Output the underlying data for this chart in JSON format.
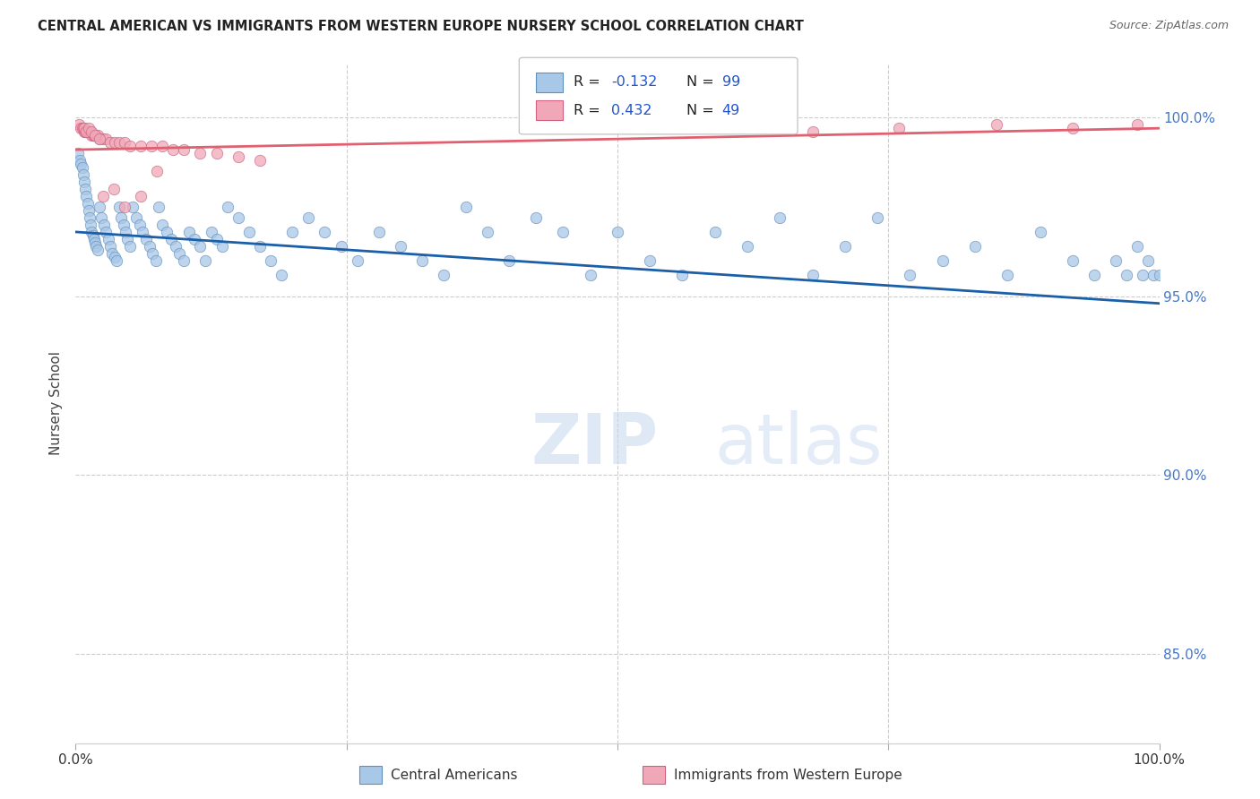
{
  "title": "CENTRAL AMERICAN VS IMMIGRANTS FROM WESTERN EUROPE NURSERY SCHOOL CORRELATION CHART",
  "source": "Source: ZipAtlas.com",
  "ylabel": "Nursery School",
  "yticks": [
    "100.0%",
    "95.0%",
    "90.0%",
    "85.0%"
  ],
  "ytick_vals": [
    1.0,
    0.95,
    0.9,
    0.85
  ],
  "xlim": [
    0.0,
    1.0
  ],
  "ylim": [
    0.825,
    1.015
  ],
  "legend_labels": [
    "Central Americans",
    "Immigrants from Western Europe"
  ],
  "color_blue": "#a8c8e8",
  "color_pink": "#f0a8b8",
  "color_blue_line": "#1a5fa8",
  "color_pink_line": "#e06070",
  "color_blue_edge": "#6090c0",
  "color_pink_edge": "#d06080",
  "watermark_zip": "ZIP",
  "watermark_atlas": "atlas",
  "blue_x": [
    0.002,
    0.004,
    0.005,
    0.006,
    0.007,
    0.008,
    0.009,
    0.01,
    0.011,
    0.012,
    0.013,
    0.014,
    0.015,
    0.016,
    0.017,
    0.018,
    0.019,
    0.02,
    0.022,
    0.024,
    0.026,
    0.028,
    0.03,
    0.032,
    0.034,
    0.036,
    0.038,
    0.04,
    0.042,
    0.044,
    0.046,
    0.048,
    0.05,
    0.053,
    0.056,
    0.059,
    0.062,
    0.065,
    0.068,
    0.071,
    0.074,
    0.077,
    0.08,
    0.084,
    0.088,
    0.092,
    0.096,
    0.1,
    0.105,
    0.11,
    0.115,
    0.12,
    0.125,
    0.13,
    0.135,
    0.14,
    0.15,
    0.16,
    0.17,
    0.18,
    0.19,
    0.2,
    0.215,
    0.23,
    0.245,
    0.26,
    0.28,
    0.3,
    0.32,
    0.34,
    0.36,
    0.38,
    0.4,
    0.425,
    0.45,
    0.475,
    0.5,
    0.53,
    0.56,
    0.59,
    0.62,
    0.65,
    0.68,
    0.71,
    0.74,
    0.77,
    0.8,
    0.83,
    0.86,
    0.89,
    0.92,
    0.94,
    0.96,
    0.97,
    0.98,
    0.985,
    0.99,
    0.995,
    1.0
  ],
  "blue_y": [
    0.99,
    0.988,
    0.987,
    0.986,
    0.984,
    0.982,
    0.98,
    0.978,
    0.976,
    0.974,
    0.972,
    0.97,
    0.968,
    0.967,
    0.966,
    0.965,
    0.964,
    0.963,
    0.975,
    0.972,
    0.97,
    0.968,
    0.966,
    0.964,
    0.962,
    0.961,
    0.96,
    0.975,
    0.972,
    0.97,
    0.968,
    0.966,
    0.964,
    0.975,
    0.972,
    0.97,
    0.968,
    0.966,
    0.964,
    0.962,
    0.96,
    0.975,
    0.97,
    0.968,
    0.966,
    0.964,
    0.962,
    0.96,
    0.968,
    0.966,
    0.964,
    0.96,
    0.968,
    0.966,
    0.964,
    0.975,
    0.972,
    0.968,
    0.964,
    0.96,
    0.956,
    0.968,
    0.972,
    0.968,
    0.964,
    0.96,
    0.968,
    0.964,
    0.96,
    0.956,
    0.975,
    0.968,
    0.96,
    0.972,
    0.968,
    0.956,
    0.968,
    0.96,
    0.956,
    0.968,
    0.964,
    0.972,
    0.956,
    0.964,
    0.972,
    0.956,
    0.96,
    0.964,
    0.956,
    0.968,
    0.96,
    0.956,
    0.96,
    0.956,
    0.964,
    0.956,
    0.96,
    0.956,
    0.956
  ],
  "pink_x": [
    0.003,
    0.005,
    0.006,
    0.007,
    0.008,
    0.009,
    0.01,
    0.011,
    0.012,
    0.013,
    0.014,
    0.015,
    0.016,
    0.017,
    0.018,
    0.02,
    0.022,
    0.025,
    0.028,
    0.032,
    0.036,
    0.04,
    0.045,
    0.05,
    0.06,
    0.07,
    0.08,
    0.09,
    0.1,
    0.115,
    0.13,
    0.15,
    0.17,
    0.06,
    0.075,
    0.025,
    0.035,
    0.045,
    0.68,
    0.76,
    0.85,
    0.92,
    0.98,
    0.008,
    0.01,
    0.012,
    0.015,
    0.018,
    0.022
  ],
  "pink_y": [
    0.998,
    0.997,
    0.997,
    0.997,
    0.996,
    0.996,
    0.996,
    0.996,
    0.996,
    0.996,
    0.996,
    0.995,
    0.995,
    0.995,
    0.995,
    0.995,
    0.994,
    0.994,
    0.994,
    0.993,
    0.993,
    0.993,
    0.993,
    0.992,
    0.992,
    0.992,
    0.992,
    0.991,
    0.991,
    0.99,
    0.99,
    0.989,
    0.988,
    0.978,
    0.985,
    0.978,
    0.98,
    0.975,
    0.996,
    0.997,
    0.998,
    0.997,
    0.998,
    0.997,
    0.996,
    0.997,
    0.996,
    0.995,
    0.994
  ],
  "blue_line_x0": 0.0,
  "blue_line_x1": 1.0,
  "blue_line_y0": 0.968,
  "blue_line_y1": 0.948,
  "pink_line_x0": 0.0,
  "pink_line_x1": 1.0,
  "pink_line_y0": 0.991,
  "pink_line_y1": 0.997
}
